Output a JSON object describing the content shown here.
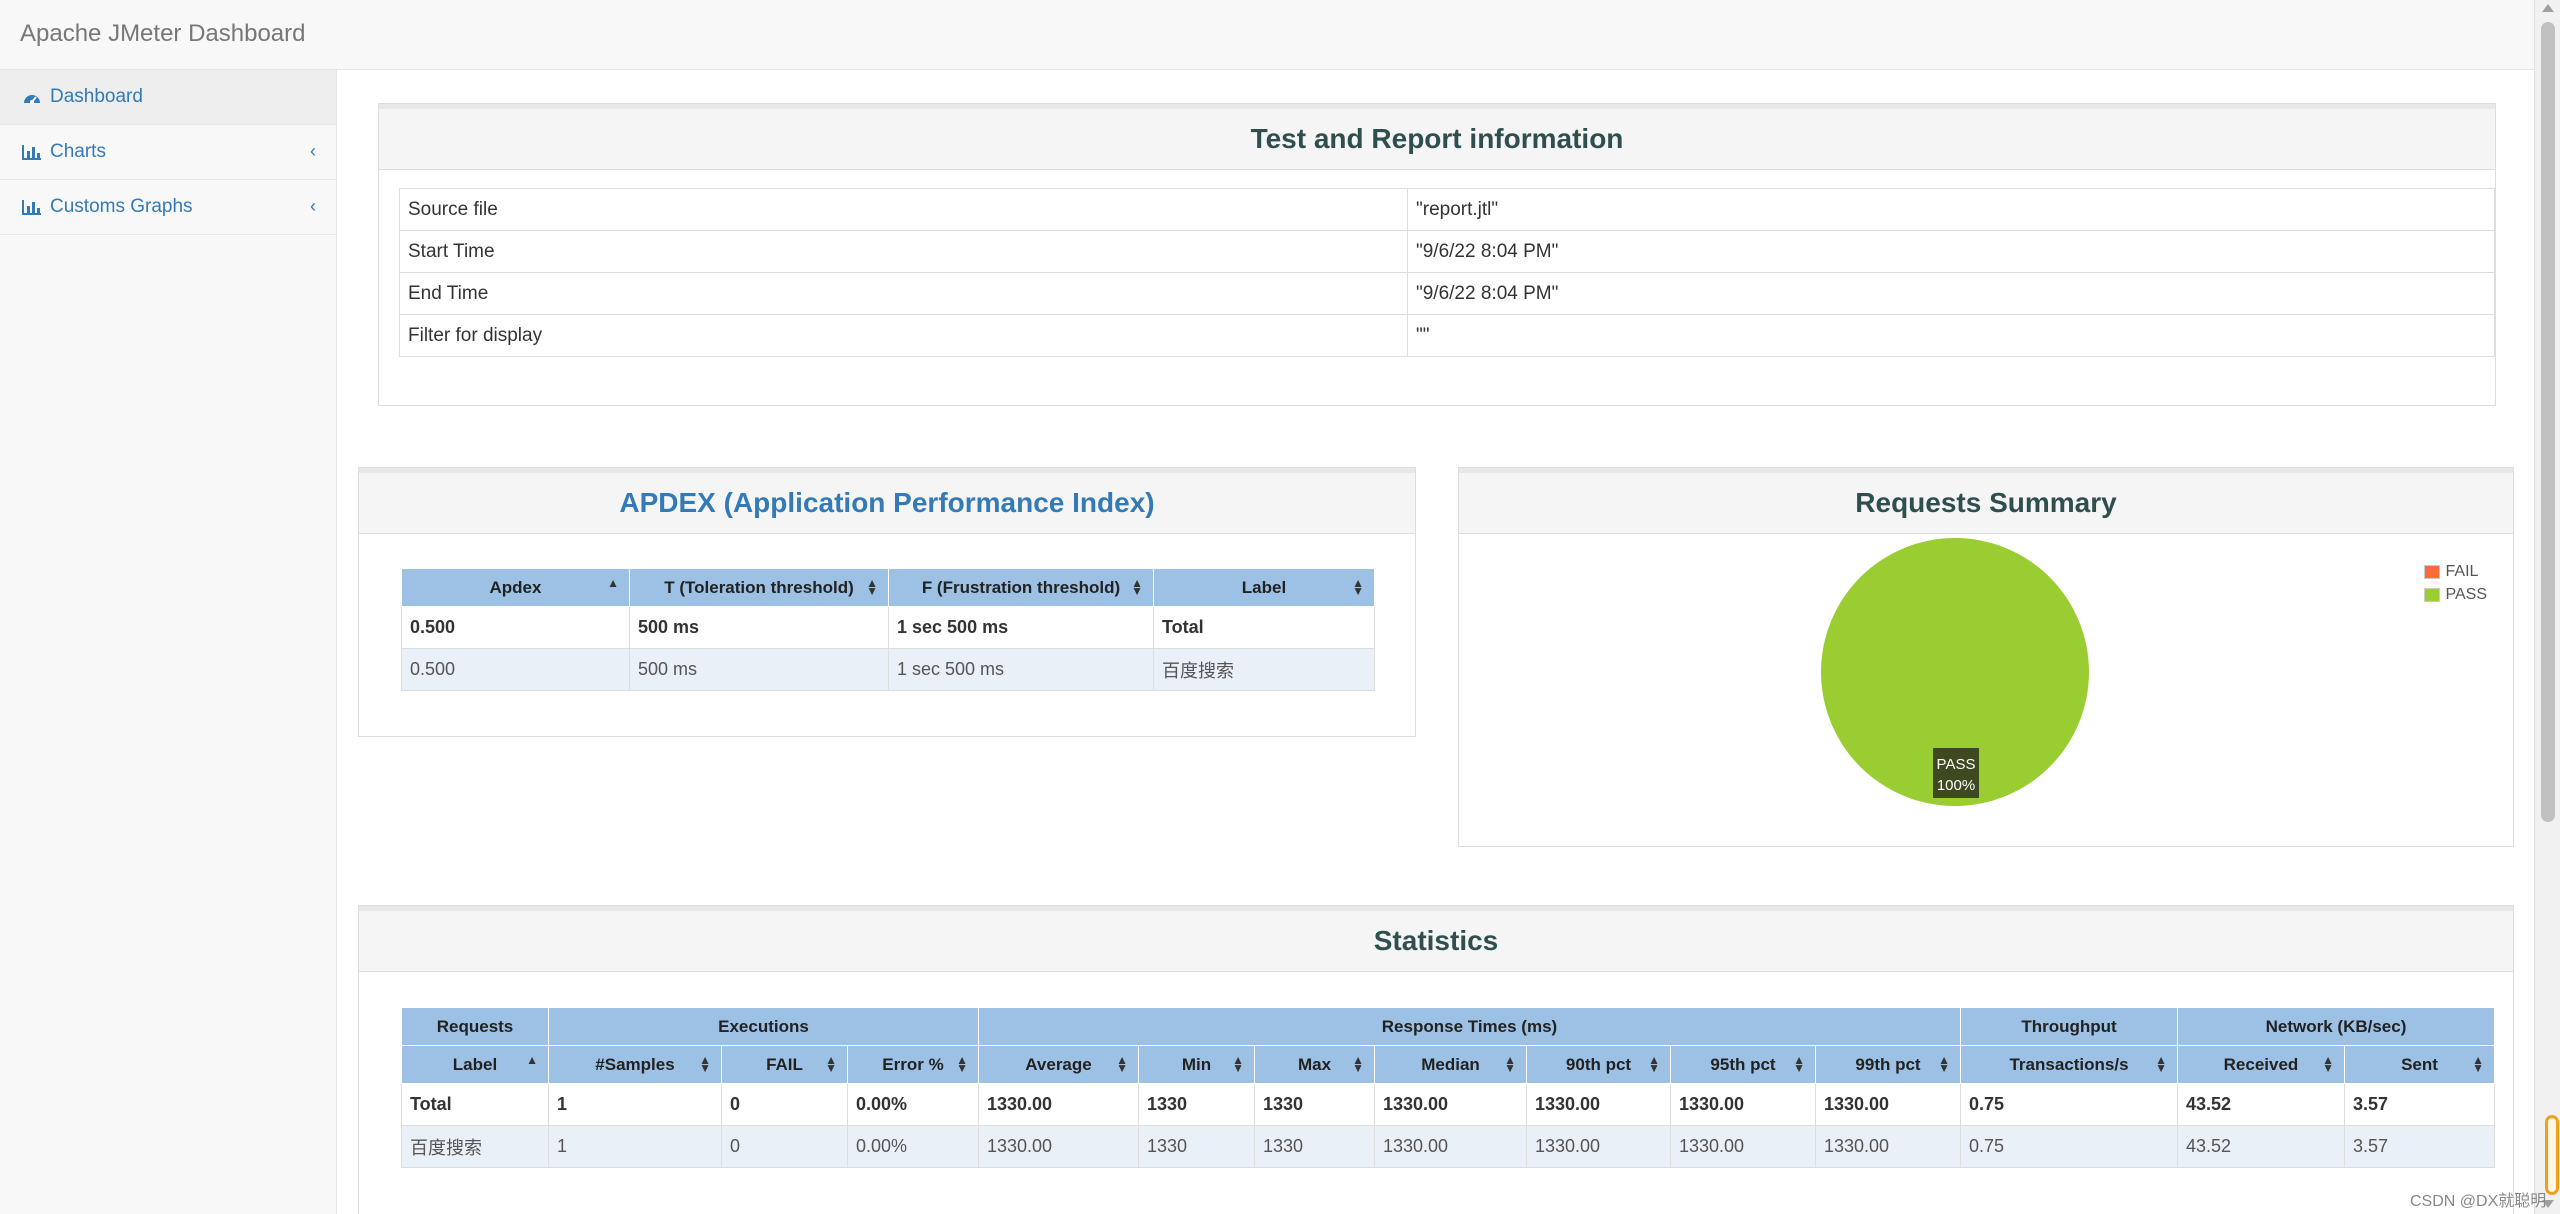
{
  "brand": "Apache JMeter Dashboard",
  "sidebar": {
    "items": [
      {
        "label": "Dashboard",
        "icon": "dashboard-icon"
      },
      {
        "label": "Charts",
        "icon": "bar-chart-icon"
      },
      {
        "label": "Customs Graphs",
        "icon": "bar-chart-icon"
      }
    ],
    "chevron": "‹"
  },
  "test_info": {
    "title": "Test and Report information",
    "rows": [
      {
        "key": "Source file",
        "value": "\"report.jtl\""
      },
      {
        "key": "Start Time",
        "value": "\"9/6/22 8:04 PM\""
      },
      {
        "key": "End Time",
        "value": "\"9/6/22 8:04 PM\""
      },
      {
        "key": "Filter for display",
        "value": "\"\""
      }
    ]
  },
  "apdex": {
    "title": "APDEX (Application Performance Index)",
    "headers": [
      "Apdex",
      "T (Toleration threshold)",
      "F (Frustration threshold)",
      "Label"
    ],
    "rows": [
      [
        "0.500",
        "500 ms",
        "1 sec 500 ms",
        "Total"
      ],
      [
        "0.500",
        "500 ms",
        "1 sec 500 ms",
        "百度搜索"
      ]
    ]
  },
  "requests_summary": {
    "title": "Requests Summary",
    "legend": [
      {
        "label": "FAIL",
        "color": "#ff6a3d"
      },
      {
        "label": "PASS",
        "color": "#9acd32"
      }
    ],
    "slice_label": "PASS",
    "slice_pct": "100%"
  },
  "statistics": {
    "title": "Statistics",
    "groups": [
      "Requests",
      "Executions",
      "Response Times (ms)",
      "Throughput",
      "Network (KB/sec)"
    ],
    "headers": [
      "Label",
      "#Samples",
      "FAIL",
      "Error %",
      "Average",
      "Min",
      "Max",
      "Median",
      "90th pct",
      "95th pct",
      "99th pct",
      "Transactions/s",
      "Received",
      "Sent"
    ],
    "rows": [
      [
        "Total",
        "1",
        "0",
        "0.00%",
        "1330.00",
        "1330",
        "1330",
        "1330.00",
        "1330.00",
        "1330.00",
        "1330.00",
        "0.75",
        "43.52",
        "3.57"
      ],
      [
        "百度搜索",
        "1",
        "0",
        "0.00%",
        "1330.00",
        "1330",
        "1330",
        "1330.00",
        "1330.00",
        "1330.00",
        "1330.00",
        "0.75",
        "43.52",
        "3.57"
      ]
    ]
  },
  "chart_data": {
    "type": "pie",
    "title": "Requests Summary",
    "categories": [
      "FAIL",
      "PASS"
    ],
    "values": [
      0,
      100
    ],
    "legend": "top-right"
  },
  "watermark": "CSDN @DX就聪明"
}
